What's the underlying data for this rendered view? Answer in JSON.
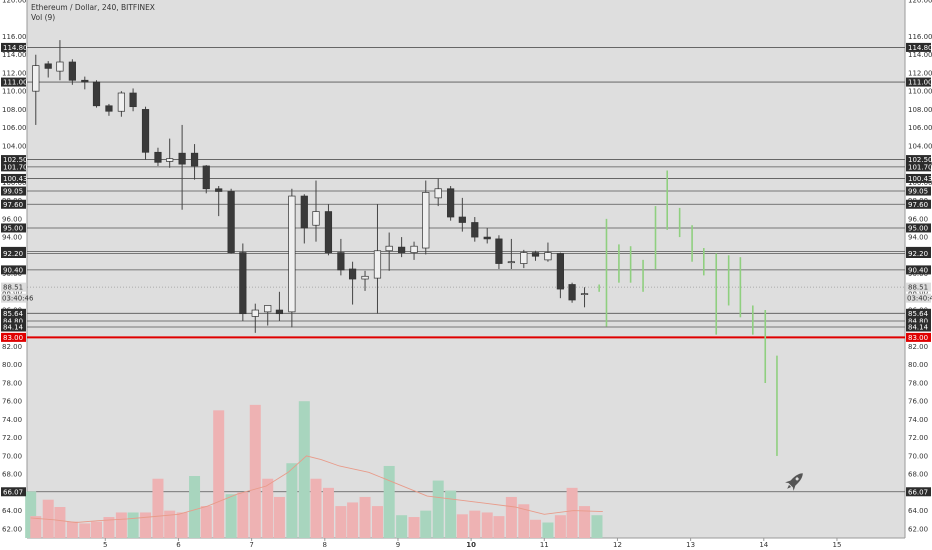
{
  "chart_data": {
    "type": "candlestick",
    "title": "Ethereum / Dollar, 240, BITFINEX",
    "indicator": "Vol (9)",
    "y_ticks": [
      "120.00",
      "116.00",
      "114.00",
      "112.00",
      "110.00",
      "108.00",
      "106.00",
      "104.00",
      "102.00",
      "100.00",
      "98.00",
      "96.00",
      "94.00",
      "92.00",
      "90.00",
      "88.00",
      "86.00",
      "84.00",
      "82.00",
      "80.00",
      "78.00",
      "76.00",
      "74.00",
      "72.00",
      "70.00",
      "68.00",
      "66.00",
      "64.00",
      "62.00"
    ],
    "x_ticks": [
      {
        "label": "5",
        "x": 5
      },
      {
        "label": "6",
        "x": 6
      },
      {
        "label": "7",
        "x": 7
      },
      {
        "label": "8",
        "x": 8
      },
      {
        "label": "9",
        "x": 9
      },
      {
        "label": "10",
        "x": 10
      },
      {
        "label": "11",
        "x": 11
      },
      {
        "label": "12",
        "x": 12
      },
      {
        "label": "13",
        "x": 13
      },
      {
        "label": "14",
        "x": 14
      },
      {
        "label": "15",
        "x": 15
      }
    ],
    "levels": [
      {
        "label": "114.80",
        "value": 114.8,
        "style": "dark",
        "left": true,
        "right": true
      },
      {
        "label": "111.00",
        "value": 111.0,
        "style": "dark",
        "left": true,
        "right": true
      },
      {
        "label": "102.50",
        "value": 102.5,
        "style": "dark",
        "left": true,
        "right": true
      },
      {
        "label": "101.70",
        "value": 101.7,
        "style": "dark",
        "left": true,
        "right": true
      },
      {
        "label": "100.43",
        "value": 100.43,
        "style": "dark",
        "left": true,
        "right": true
      },
      {
        "label": "99.05",
        "value": 99.05,
        "style": "dark",
        "left": true,
        "right": true
      },
      {
        "label": "97.60",
        "value": 97.6,
        "style": "dark",
        "left": true,
        "right": true
      },
      {
        "label": "95.00",
        "value": 95.0,
        "style": "dark",
        "left": true,
        "right": true
      },
      {
        "label": "92.43",
        "value": 92.43,
        "style": "dark",
        "left": true,
        "right": true
      },
      {
        "label": "92.20",
        "value": 92.2,
        "style": "dark",
        "left": true,
        "right": true
      },
      {
        "label": "90.40",
        "value": 90.4,
        "style": "dark",
        "left": true,
        "right": true
      },
      {
        "label": "88.51",
        "value": 88.51,
        "style": "gray",
        "left": true,
        "right": true
      },
      {
        "label": "85.64",
        "value": 85.64,
        "style": "dark",
        "left": true,
        "right": true
      },
      {
        "label": "84.80",
        "value": 84.8,
        "style": "dark",
        "left": true,
        "right": true
      },
      {
        "label": "84.14",
        "value": 84.14,
        "style": "dark",
        "left": true,
        "right": true
      },
      {
        "label": "83.00",
        "value": 83.0,
        "style": "red",
        "left": true,
        "right": true
      },
      {
        "label": "66.07",
        "value": 66.07,
        "style": "dark",
        "left": true,
        "right": true
      }
    ],
    "countdown": {
      "label": "03:40:46",
      "value": 87.3
    },
    "candles": [
      {
        "x": 4.05,
        "o": 110.0,
        "h": 114.0,
        "l": 106.3,
        "c": 112.8
      },
      {
        "x": 4.22,
        "o": 113.0,
        "h": 113.3,
        "l": 111.5,
        "c": 112.5
      },
      {
        "x": 4.38,
        "o": 112.2,
        "h": 115.6,
        "l": 111.2,
        "c": 113.2
      },
      {
        "x": 4.55,
        "o": 113.2,
        "h": 113.5,
        "l": 110.7,
        "c": 111.2
      },
      {
        "x": 4.72,
        "o": 111.2,
        "h": 111.6,
        "l": 110.2,
        "c": 111.0
      },
      {
        "x": 4.88,
        "o": 111.0,
        "h": 111.2,
        "l": 108.2,
        "c": 108.4
      },
      {
        "x": 5.05,
        "o": 108.4,
        "h": 108.6,
        "l": 107.3,
        "c": 107.8
      },
      {
        "x": 5.22,
        "o": 107.8,
        "h": 110.0,
        "l": 107.2,
        "c": 109.8
      },
      {
        "x": 5.38,
        "o": 109.8,
        "h": 110.3,
        "l": 107.8,
        "c": 108.3
      },
      {
        "x": 5.55,
        "o": 108.0,
        "h": 108.3,
        "l": 102.5,
        "c": 103.3
      },
      {
        "x": 5.72,
        "o": 103.3,
        "h": 103.8,
        "l": 101.8,
        "c": 102.2
      },
      {
        "x": 5.88,
        "o": 102.3,
        "h": 104.8,
        "l": 101.6,
        "c": 102.6
      },
      {
        "x": 6.05,
        "o": 103.2,
        "h": 106.3,
        "l": 97.0,
        "c": 102.0
      },
      {
        "x": 6.22,
        "o": 103.2,
        "h": 104.2,
        "l": 100.3,
        "c": 101.8
      },
      {
        "x": 6.38,
        "o": 101.8,
        "h": 101.9,
        "l": 98.8,
        "c": 99.3
      },
      {
        "x": 6.55,
        "o": 99.3,
        "h": 99.6,
        "l": 96.3,
        "c": 99.0
      },
      {
        "x": 6.72,
        "o": 99.0,
        "h": 99.3,
        "l": 92.2,
        "c": 92.3
      },
      {
        "x": 6.88,
        "o": 92.3,
        "h": 93.3,
        "l": 84.8,
        "c": 85.6
      },
      {
        "x": 7.05,
        "o": 85.3,
        "h": 86.7,
        "l": 83.5,
        "c": 86.0
      },
      {
        "x": 7.22,
        "o": 85.8,
        "h": 86.3,
        "l": 84.3,
        "c": 86.5
      },
      {
        "x": 7.38,
        "o": 86.0,
        "h": 88.0,
        "l": 84.8,
        "c": 85.6
      },
      {
        "x": 7.55,
        "o": 85.8,
        "h": 99.3,
        "l": 84.1,
        "c": 98.5
      },
      {
        "x": 7.72,
        "o": 98.5,
        "h": 98.7,
        "l": 93.3,
        "c": 95.0
      },
      {
        "x": 7.88,
        "o": 95.3,
        "h": 100.2,
        "l": 93.5,
        "c": 96.8
      },
      {
        "x": 8.05,
        "o": 96.8,
        "h": 97.6,
        "l": 92.0,
        "c": 92.3
      },
      {
        "x": 8.22,
        "o": 92.3,
        "h": 93.8,
        "l": 89.8,
        "c": 90.4
      },
      {
        "x": 8.38,
        "o": 90.5,
        "h": 91.3,
        "l": 86.6,
        "c": 89.4
      },
      {
        "x": 8.55,
        "o": 89.4,
        "h": 90.3,
        "l": 88.1,
        "c": 89.7
      },
      {
        "x": 8.72,
        "o": 89.5,
        "h": 97.6,
        "l": 85.6,
        "c": 92.5
      },
      {
        "x": 8.88,
        "o": 92.5,
        "h": 94.5,
        "l": 90.3,
        "c": 93.0
      },
      {
        "x": 9.05,
        "o": 92.9,
        "h": 94.0,
        "l": 91.8,
        "c": 92.3
      },
      {
        "x": 9.22,
        "o": 92.3,
        "h": 93.5,
        "l": 91.5,
        "c": 93.0
      },
      {
        "x": 9.38,
        "o": 92.8,
        "h": 100.2,
        "l": 92.1,
        "c": 98.9
      },
      {
        "x": 9.55,
        "o": 98.3,
        "h": 100.4,
        "l": 97.4,
        "c": 99.3
      },
      {
        "x": 9.72,
        "o": 99.3,
        "h": 99.6,
        "l": 95.8,
        "c": 96.2
      },
      {
        "x": 9.88,
        "o": 96.2,
        "h": 98.3,
        "l": 94.6,
        "c": 95.6
      },
      {
        "x": 10.05,
        "o": 95.6,
        "h": 96.2,
        "l": 93.5,
        "c": 94.0
      },
      {
        "x": 10.22,
        "o": 94.0,
        "h": 95.0,
        "l": 93.3,
        "c": 93.8
      },
      {
        "x": 10.38,
        "o": 93.8,
        "h": 94.2,
        "l": 90.5,
        "c": 91.1
      },
      {
        "x": 10.55,
        "o": 91.2,
        "h": 93.8,
        "l": 90.5,
        "c": 91.3
      },
      {
        "x": 10.72,
        "o": 91.1,
        "h": 92.6,
        "l": 90.6,
        "c": 92.3
      },
      {
        "x": 10.88,
        "o": 92.3,
        "h": 92.5,
        "l": 91.4,
        "c": 91.9
      },
      {
        "x": 11.05,
        "o": 91.5,
        "h": 93.4,
        "l": 91.3,
        "c": 92.3
      },
      {
        "x": 11.22,
        "o": 92.2,
        "h": 92.3,
        "l": 87.3,
        "c": 88.3
      },
      {
        "x": 11.38,
        "o": 88.8,
        "h": 89.0,
        "l": 86.8,
        "c": 87.1
      },
      {
        "x": 11.55,
        "o": 87.8,
        "h": 88.5,
        "l": 86.3,
        "c": 87.8
      }
    ],
    "candle_colors": {
      "bull": "#f0f0f0",
      "bear": "#3a3a3a",
      "wick": "#444444"
    },
    "projection_bars": [
      {
        "x": 11.75,
        "y1": 88.0,
        "y2": 88.8
      },
      {
        "x": 11.85,
        "y1": 84.2,
        "y2": 96.0
      },
      {
        "x": 12.02,
        "y1": 89.0,
        "y2": 93.2
      },
      {
        "x": 12.18,
        "y1": 89.0,
        "y2": 93.0
      },
      {
        "x": 12.35,
        "y1": 88.0,
        "y2": 91.5
      },
      {
        "x": 12.52,
        "y1": 90.5,
        "y2": 97.4
      },
      {
        "x": 12.68,
        "y1": 94.8,
        "y2": 101.3
      },
      {
        "x": 12.85,
        "y1": 94.0,
        "y2": 97.2
      },
      {
        "x": 13.02,
        "y1": 91.3,
        "y2": 95.3
      },
      {
        "x": 13.18,
        "y1": 89.8,
        "y2": 92.8
      },
      {
        "x": 13.35,
        "y1": 83.3,
        "y2": 92.2
      },
      {
        "x": 13.52,
        "y1": 86.5,
        "y2": 92.0
      },
      {
        "x": 13.68,
        "y1": 85.2,
        "y2": 91.8
      },
      {
        "x": 13.85,
        "y1": 83.3,
        "y2": 86.5
      },
      {
        "x": 14.02,
        "y1": 78.0,
        "y2": 86.0
      },
      {
        "x": 14.18,
        "y1": 70.0,
        "y2": 81.0
      }
    ],
    "projection_color": "#8fcf7f",
    "volume": {
      "bars": [
        {
          "x": 3.98,
          "v": 66.1,
          "up": true
        },
        {
          "x": 4.05,
          "v": 63.4,
          "up": false
        },
        {
          "x": 4.22,
          "v": 65.2,
          "up": false
        },
        {
          "x": 4.38,
          "v": 64.4,
          "up": false
        },
        {
          "x": 4.55,
          "v": 62.8,
          "up": false
        },
        {
          "x": 4.72,
          "v": 62.6,
          "up": false
        },
        {
          "x": 4.88,
          "v": 62.8,
          "up": false
        },
        {
          "x": 5.05,
          "v": 63.3,
          "up": false
        },
        {
          "x": 5.22,
          "v": 63.8,
          "up": false
        },
        {
          "x": 5.38,
          "v": 63.8,
          "up": true
        },
        {
          "x": 5.55,
          "v": 63.8,
          "up": false
        },
        {
          "x": 5.72,
          "v": 67.5,
          "up": false
        },
        {
          "x": 5.88,
          "v": 64.0,
          "up": false
        },
        {
          "x": 6.05,
          "v": 63.8,
          "up": false
        },
        {
          "x": 6.22,
          "v": 67.8,
          "up": true
        },
        {
          "x": 6.38,
          "v": 64.5,
          "up": false
        },
        {
          "x": 6.55,
          "v": 75.0,
          "up": false
        },
        {
          "x": 6.72,
          "v": 65.8,
          "up": true
        },
        {
          "x": 6.88,
          "v": 66.0,
          "up": false
        },
        {
          "x": 7.05,
          "v": 75.6,
          "up": false
        },
        {
          "x": 7.22,
          "v": 67.5,
          "up": false
        },
        {
          "x": 7.38,
          "v": 65.5,
          "up": false
        },
        {
          "x": 7.55,
          "v": 69.2,
          "up": true
        },
        {
          "x": 7.72,
          "v": 76.0,
          "up": true
        },
        {
          "x": 7.88,
          "v": 67.5,
          "up": false
        },
        {
          "x": 8.05,
          "v": 66.5,
          "up": false
        },
        {
          "x": 8.22,
          "v": 64.5,
          "up": false
        },
        {
          "x": 8.38,
          "v": 64.9,
          "up": false
        },
        {
          "x": 8.55,
          "v": 65.5,
          "up": false
        },
        {
          "x": 8.72,
          "v": 64.5,
          "up": false
        },
        {
          "x": 8.88,
          "v": 68.9,
          "up": true
        },
        {
          "x": 9.05,
          "v": 63.5,
          "up": true
        },
        {
          "x": 9.22,
          "v": 63.3,
          "up": false
        },
        {
          "x": 9.38,
          "v": 64.0,
          "up": true
        },
        {
          "x": 9.55,
          "v": 67.3,
          "up": true
        },
        {
          "x": 9.72,
          "v": 66.2,
          "up": true
        },
        {
          "x": 9.88,
          "v": 63.6,
          "up": false
        },
        {
          "x": 10.05,
          "v": 64.0,
          "up": false
        },
        {
          "x": 10.22,
          "v": 63.8,
          "up": false
        },
        {
          "x": 10.38,
          "v": 63.4,
          "up": false
        },
        {
          "x": 10.55,
          "v": 65.5,
          "up": false
        },
        {
          "x": 10.72,
          "v": 64.7,
          "up": false
        },
        {
          "x": 10.88,
          "v": 63.0,
          "up": false
        },
        {
          "x": 11.05,
          "v": 62.7,
          "up": true
        },
        {
          "x": 11.22,
          "v": 63.5,
          "up": false
        },
        {
          "x": 11.38,
          "v": 66.5,
          "up": false
        },
        {
          "x": 11.55,
          "v": 64.5,
          "up": false
        },
        {
          "x": 11.72,
          "v": 63.5,
          "up": true
        }
      ],
      "ma": [
        {
          "x": 3.98,
          "v": 63.2
        },
        {
          "x": 4.3,
          "v": 63.0
        },
        {
          "x": 4.6,
          "v": 62.7
        },
        {
          "x": 4.9,
          "v": 62.9
        },
        {
          "x": 5.3,
          "v": 63.1
        },
        {
          "x": 5.6,
          "v": 63.3
        },
        {
          "x": 6.0,
          "v": 63.6
        },
        {
          "x": 6.4,
          "v": 64.5
        },
        {
          "x": 6.8,
          "v": 65.8
        },
        {
          "x": 7.2,
          "v": 66.7
        },
        {
          "x": 7.5,
          "v": 68.2
        },
        {
          "x": 7.75,
          "v": 70.0
        },
        {
          "x": 7.95,
          "v": 69.6
        },
        {
          "x": 8.2,
          "v": 68.9
        },
        {
          "x": 8.6,
          "v": 68.2
        },
        {
          "x": 9.0,
          "v": 66.9
        },
        {
          "x": 9.4,
          "v": 65.6
        },
        {
          "x": 9.8,
          "v": 65.2
        },
        {
          "x": 10.2,
          "v": 64.8
        },
        {
          "x": 10.6,
          "v": 64.4
        },
        {
          "x": 11.0,
          "v": 63.6
        },
        {
          "x": 11.4,
          "v": 64.0
        },
        {
          "x": 11.8,
          "v": 63.9
        }
      ],
      "up_color": "#a8d5be",
      "down_color": "#eeb2b3",
      "ma_color": "#e89b8a"
    },
    "ylim": [
      61,
      120
    ],
    "xlim": [
      3.93,
      15.93
    ]
  }
}
